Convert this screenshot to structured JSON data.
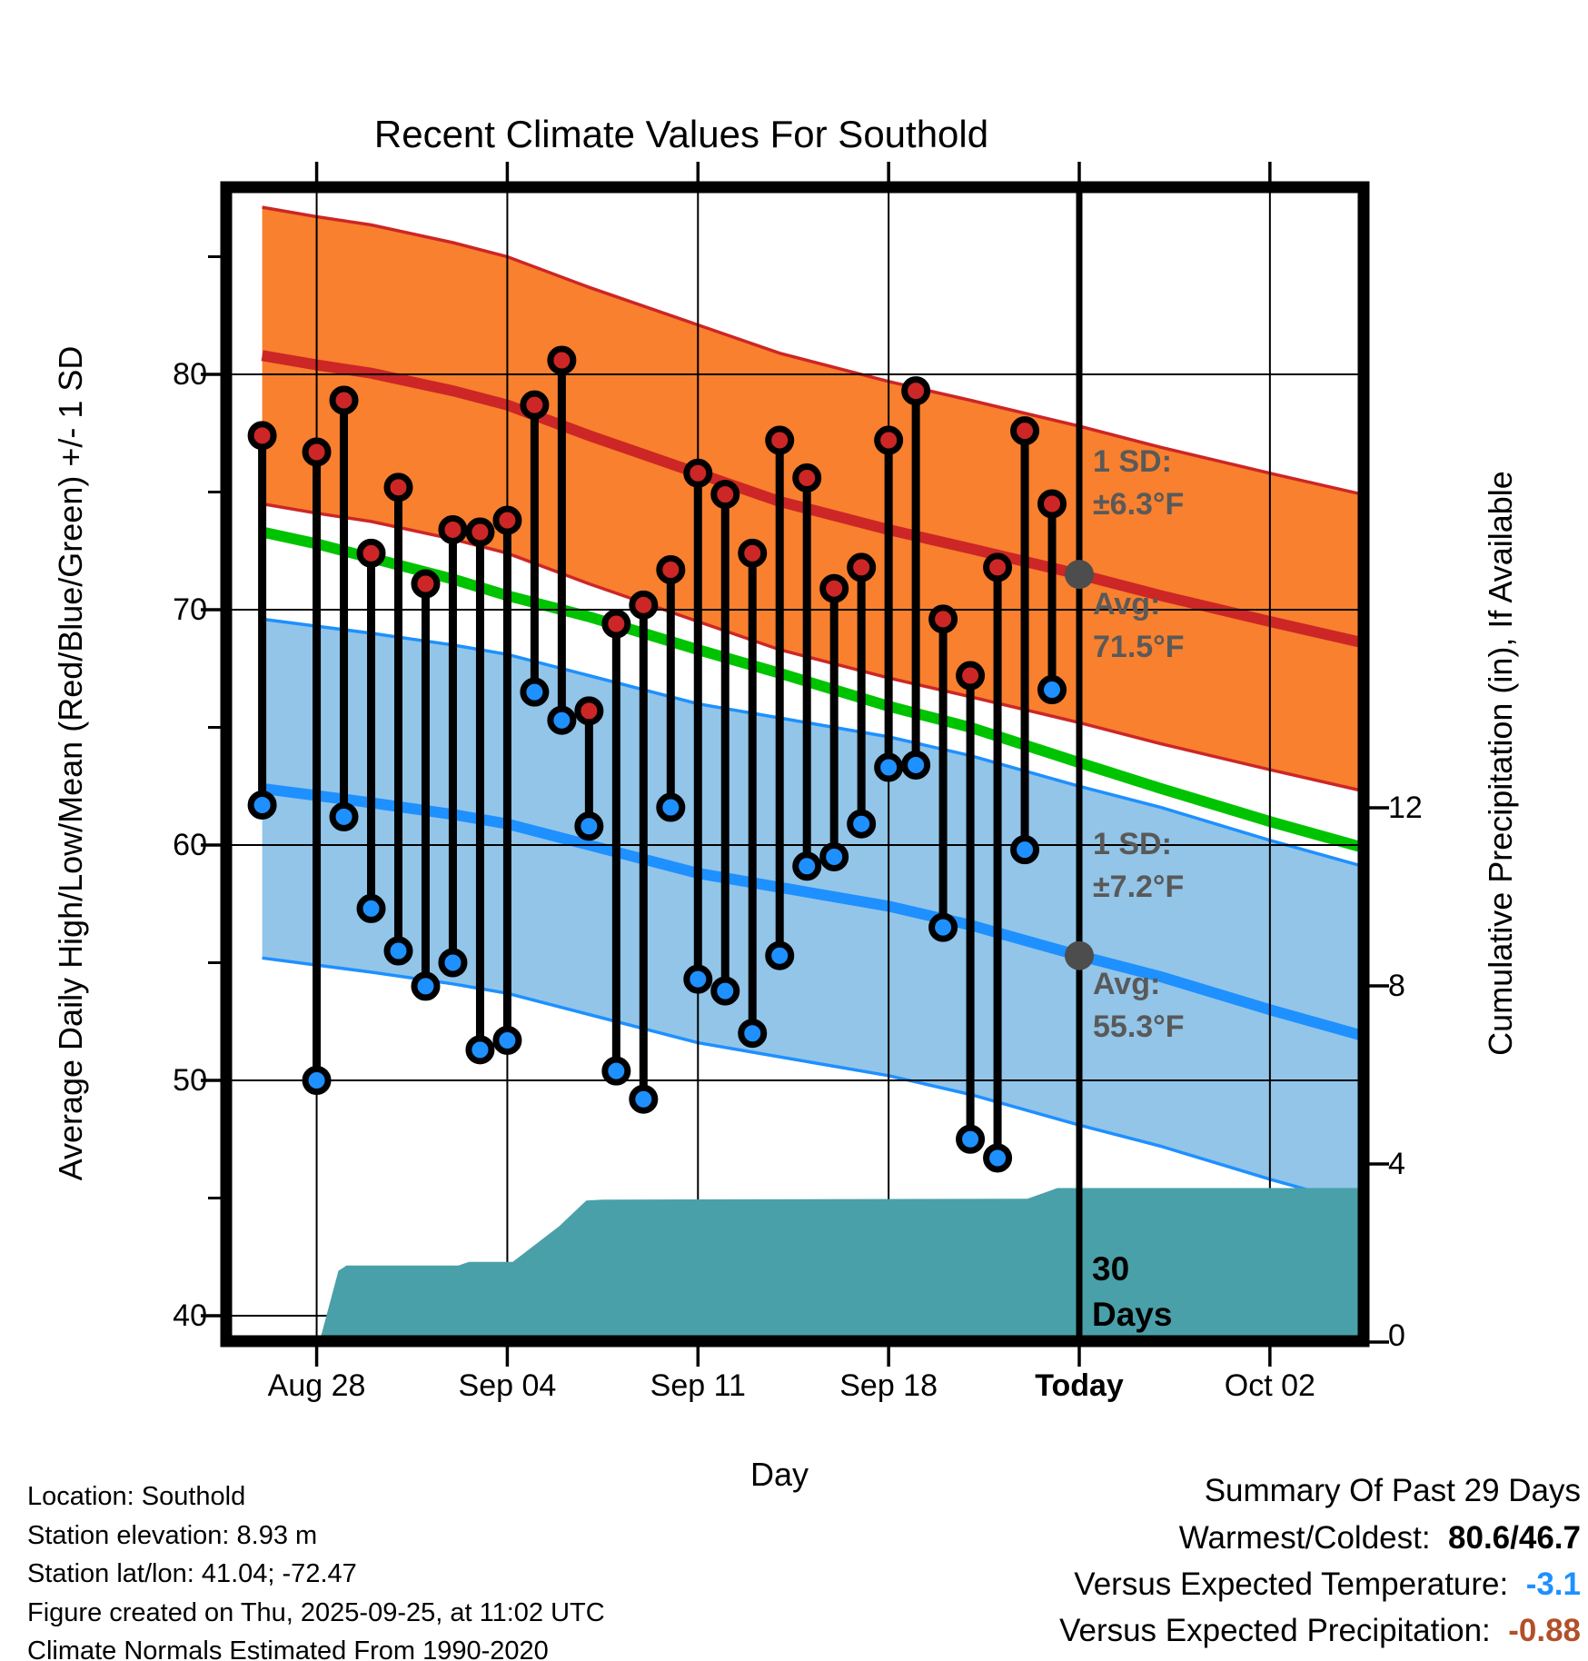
{
  "title": "Recent Climate Values For Southold",
  "colors": {
    "high_band_fill": "#F8802E",
    "high_line": "#CD2626",
    "low_band_fill": "#92C5E8",
    "low_line": "#1E90FF",
    "mean_line": "#00C300",
    "precip_fill": "#4AA0A8",
    "annotation_gray": "#595959",
    "marker_gray": "#4D4D4D",
    "stem": "#000000",
    "vs_temp_value": "#1E90FF",
    "vs_precip_value": "#B1502A"
  },
  "y_left_axis": {
    "label": "Average Daily High/Low/Mean (Red/Blue/Green) +/- 1 SD",
    "major_ticks": [
      80,
      70,
      60,
      50,
      40
    ],
    "minor_ticks": [
      85,
      75,
      65,
      55,
      45
    ]
  },
  "y_right_axis": {
    "label": "Cumulative Precipitation (in), If Available",
    "major_ticks": [
      12,
      8,
      4,
      0
    ]
  },
  "x_axis": {
    "label": "Day",
    "ticks": [
      {
        "label": "Aug 28",
        "day": 2,
        "bold": false
      },
      {
        "label": "Sep 04",
        "day": 9,
        "bold": false
      },
      {
        "label": "Sep 11",
        "day": 16,
        "bold": false
      },
      {
        "label": "Sep 18",
        "day": 23,
        "bold": false
      },
      {
        "label": "Today",
        "day": 30,
        "bold": true
      },
      {
        "label": "Oct 02",
        "day": 37,
        "bold": false
      }
    ]
  },
  "annotations": {
    "high_band": {
      "sd_label": "1 SD:",
      "sd_value": "±6.3°F",
      "avg_label": "Avg:",
      "avg_value": "71.5°F"
    },
    "low_band": {
      "sd_label": "1 SD:",
      "sd_value": "±7.2°F",
      "avg_label": "Avg:",
      "avg_value": "55.3°F"
    },
    "window_line1": "30",
    "window_line2": "Days"
  },
  "footer": {
    "lines": [
      "Location: Southold",
      "Station elevation: 8.93 m",
      "Station lat/lon: 41.04; -72.47",
      "Figure created on Thu, 2025-09-25, at 11:02 UTC",
      "Climate Normals Estimated From 1990-2020"
    ]
  },
  "summary": {
    "title": "Summary Of Past 29 Days",
    "rows": [
      {
        "label": "Warmest/Coldest:",
        "value": "80.6/46.7",
        "value_color": "#000000"
      },
      {
        "label": "Versus Expected Temperature:",
        "value": "-3.1",
        "value_color": "#1E90FF"
      },
      {
        "label": "Versus Expected Precipitation:",
        "value": "-0.88",
        "value_color": "#B1502A"
      }
    ]
  },
  "chart_data": {
    "type": "line",
    "subtype": "climate-stems-with-normal-bands-and-cumulative-precip",
    "x_unit": "day index, 0 = Aug 26 2025, Today = 30 (Sep 25)",
    "temp_axis_range": [
      39.1,
      87.7
    ],
    "precip_axis_range_in": [
      0,
      25.9
    ],
    "today_day": 30,
    "grid": true,
    "daily_high_low": [
      {
        "date": "Aug 26",
        "day": 0,
        "high": 77.4,
        "low": 61.7
      },
      {
        "date": "Aug 28",
        "day": 2,
        "high": 76.7,
        "low": 50.0
      },
      {
        "date": "Aug 29",
        "day": 3,
        "high": 78.9,
        "low": 61.2
      },
      {
        "date": "Aug 30",
        "day": 4,
        "high": 72.4,
        "low": 57.3
      },
      {
        "date": "Aug 31",
        "day": 5,
        "high": 75.2,
        "low": 55.5
      },
      {
        "date": "Sep 01",
        "day": 6,
        "high": 71.1,
        "low": 54.0
      },
      {
        "date": "Sep 02",
        "day": 7,
        "high": 73.4,
        "low": 55.0
      },
      {
        "date": "Sep 03",
        "day": 8,
        "high": 73.3,
        "low": 51.3
      },
      {
        "date": "Sep 04",
        "day": 9,
        "high": 73.8,
        "low": 51.7
      },
      {
        "date": "Sep 05",
        "day": 10,
        "high": 78.7,
        "low": 66.5
      },
      {
        "date": "Sep 06",
        "day": 11,
        "high": 80.6,
        "low": 65.3
      },
      {
        "date": "Sep 07",
        "day": 12,
        "high": 65.7,
        "low": 60.8
      },
      {
        "date": "Sep 08",
        "day": 13,
        "high": 69.4,
        "low": 50.4
      },
      {
        "date": "Sep 09",
        "day": 14,
        "high": 70.2,
        "low": 49.2
      },
      {
        "date": "Sep 10",
        "day": 15,
        "high": 71.7,
        "low": 61.6
      },
      {
        "date": "Sep 11",
        "day": 16,
        "high": 75.8,
        "low": 54.3
      },
      {
        "date": "Sep 12",
        "day": 17,
        "high": 74.9,
        "low": 53.8
      },
      {
        "date": "Sep 13",
        "day": 18,
        "high": 72.4,
        "low": 52.0
      },
      {
        "date": "Sep 14",
        "day": 19,
        "high": 77.2,
        "low": 55.3
      },
      {
        "date": "Sep 15",
        "day": 20,
        "high": 75.6,
        "low": 59.1
      },
      {
        "date": "Sep 16",
        "day": 21,
        "high": 70.9,
        "low": 59.5
      },
      {
        "date": "Sep 17",
        "day": 22,
        "high": 71.8,
        "low": 60.9
      },
      {
        "date": "Sep 18",
        "day": 23,
        "high": 77.2,
        "low": 63.3
      },
      {
        "date": "Sep 19",
        "day": 24,
        "high": 79.3,
        "low": 63.4
      },
      {
        "date": "Sep 20",
        "day": 25,
        "high": 69.6,
        "low": 56.5
      },
      {
        "date": "Sep 21",
        "day": 26,
        "high": 67.2,
        "low": 47.5
      },
      {
        "date": "Sep 22",
        "day": 27,
        "high": 71.8,
        "low": 46.7
      },
      {
        "date": "Sep 23",
        "day": 28,
        "high": 77.6,
        "low": 59.8
      },
      {
        "date": "Sep 24",
        "day": 29,
        "high": 74.5,
        "low": 66.6
      }
    ],
    "high_normal": {
      "sd": 6.3,
      "avg_at_today": 71.5,
      "avg_points": [
        [
          0,
          80.8
        ],
        [
          2,
          80.4
        ],
        [
          4,
          80.05
        ],
        [
          7,
          79.3
        ],
        [
          9,
          78.7
        ],
        [
          12,
          77.4
        ],
        [
          16,
          75.8
        ],
        [
          19,
          74.6
        ],
        [
          23,
          73.4
        ],
        [
          26,
          72.6
        ],
        [
          30,
          71.5
        ],
        [
          33,
          70.6
        ],
        [
          37,
          69.5
        ],
        [
          40.4,
          68.6
        ]
      ]
    },
    "low_normal": {
      "sd": 7.2,
      "avg_at_today": 55.3,
      "avg_points": [
        [
          0,
          62.4
        ],
        [
          2,
          62.1
        ],
        [
          4,
          61.8
        ],
        [
          7,
          61.3
        ],
        [
          9,
          60.9
        ],
        [
          12,
          60.0
        ],
        [
          16,
          58.8
        ],
        [
          19,
          58.2
        ],
        [
          23,
          57.4
        ],
        [
          26,
          56.6
        ],
        [
          30,
          55.3
        ],
        [
          33,
          54.4
        ],
        [
          37,
          53.0
        ],
        [
          40.4,
          51.9
        ]
      ]
    },
    "mean_normal": {
      "points": [
        [
          0,
          73.3
        ],
        [
          2,
          72.8
        ],
        [
          4,
          72.2
        ],
        [
          7,
          71.3
        ],
        [
          9,
          70.6
        ],
        [
          12,
          69.7
        ],
        [
          16,
          68.3
        ],
        [
          19,
          67.3
        ],
        [
          23,
          65.9
        ],
        [
          26,
          65.0
        ],
        [
          30,
          63.5
        ],
        [
          33,
          62.4
        ],
        [
          37,
          61.0
        ],
        [
          40.4,
          59.9
        ]
      ]
    },
    "cumulative_precip_in": {
      "points": [
        [
          2.1,
          0
        ],
        [
          2.8,
          1.6
        ],
        [
          3.1,
          1.72
        ],
        [
          7.2,
          1.72
        ],
        [
          7.6,
          1.8
        ],
        [
          9.2,
          1.8
        ],
        [
          10.9,
          2.6
        ],
        [
          11.9,
          3.18
        ],
        [
          12.5,
          3.2
        ],
        [
          28.1,
          3.22
        ],
        [
          29.2,
          3.46
        ],
        [
          40.4,
          3.46
        ]
      ]
    }
  }
}
